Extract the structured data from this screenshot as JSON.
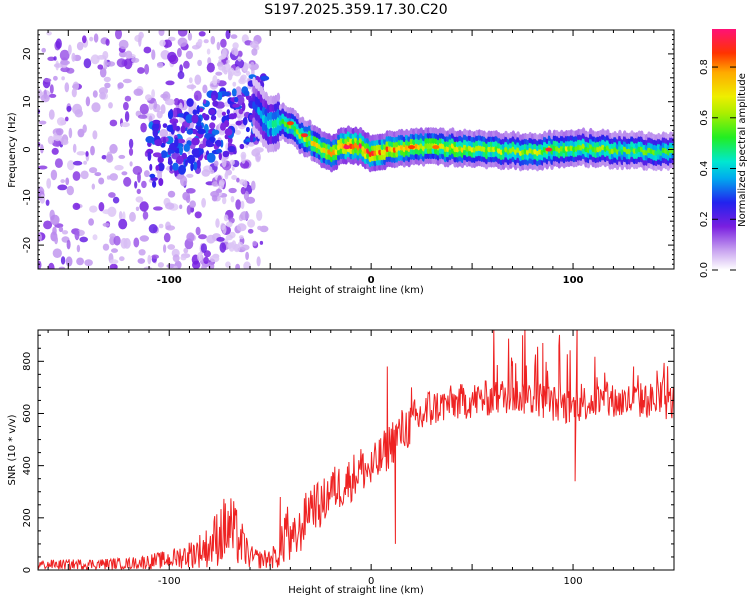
{
  "title": "S197.2025.359.17.30.C20",
  "chart_data": [
    {
      "type": "heatmap",
      "title": "S197.2025.359.17.30.C20",
      "xlabel": "Height of straight line (km)",
      "ylabel": "Frequency (Hz)",
      "xlim": [
        -165,
        150
      ],
      "ylim": [
        -25,
        25
      ],
      "x_ticks": [
        -100,
        0,
        100
      ],
      "x_tick_labels": [
        "-100",
        "0",
        "100"
      ],
      "y_ticks": [
        -20,
        -10,
        0,
        10,
        20
      ],
      "y_tick_labels": [
        "-20",
        "-10",
        "0",
        "10",
        "20"
      ],
      "colorbar": {
        "label": "Normalized spectral amplitude",
        "range": [
          0.0,
          0.95
        ],
        "ticks": [
          0.0,
          0.2,
          0.4,
          0.6,
          0.8
        ],
        "tick_labels": [
          "0.0",
          "0.2",
          "0.4",
          "0.6",
          "0.8"
        ]
      },
      "ridge": {
        "x": [
          -60,
          -50,
          -45,
          -40,
          -35,
          -30,
          -25,
          -20,
          -15,
          -10,
          -5,
          0,
          10,
          20,
          40,
          60,
          80,
          100,
          120,
          150
        ],
        "freq": [
          10,
          5,
          6,
          5,
          3,
          2,
          0.5,
          -1,
          0.5,
          1,
          0.5,
          -1,
          0,
          0.5,
          0.5,
          0,
          -0.5,
          0.5,
          0,
          -0.5
        ],
        "amplitude": [
          0.25,
          0.45,
          0.5,
          0.55,
          0.6,
          0.65,
          0.7,
          0.75,
          0.8,
          0.85,
          0.85,
          0.8,
          0.75,
          0.7,
          0.65,
          0.6,
          0.6,
          0.6,
          0.55,
          0.5
        ]
      }
    },
    {
      "type": "line",
      "xlabel": "Height of straight line (km)",
      "ylabel": "SNR (10 * v/v)",
      "xlim": [
        -165,
        150
      ],
      "ylim": [
        0,
        920
      ],
      "x_ticks": [
        -100,
        0,
        100
      ],
      "x_tick_labels": [
        "-100",
        "0",
        "100"
      ],
      "y_ticks": [
        0,
        200,
        400,
        600,
        800
      ],
      "y_tick_labels": [
        "0",
        "200",
        "400",
        "600",
        "800"
      ],
      "series": [
        {
          "name": "SNR",
          "color": "#ee2222",
          "x": [
            -165,
            -120,
            -100,
            -90,
            -80,
            -75,
            -70,
            -65,
            -60,
            -55,
            -50,
            -45,
            -42,
            -40,
            -35,
            -30,
            -25,
            -20,
            -15,
            -10,
            -5,
            0,
            5,
            10,
            15,
            20,
            25,
            30,
            40,
            50,
            60,
            70,
            80,
            85,
            90,
            95,
            100,
            105,
            110,
            120,
            130,
            140,
            150
          ],
          "values": [
            20,
            25,
            40,
            60,
            90,
            140,
            160,
            110,
            50,
            40,
            45,
            60,
            180,
            90,
            150,
            260,
            240,
            310,
            320,
            350,
            390,
            380,
            430,
            490,
            530,
            560,
            590,
            620,
            640,
            650,
            660,
            670,
            660,
            650,
            640,
            630,
            620,
            640,
            650,
            640,
            650,
            650,
            640
          ],
          "spikes": [
            {
              "x": -45,
              "value": 280
            },
            {
              "x": 8,
              "value": 780
            },
            {
              "x": 12,
              "value": 100
            },
            {
              "x": 20,
              "value": 700
            },
            {
              "x": 70,
              "value": 800
            },
            {
              "x": 75,
              "value": 900
            },
            {
              "x": 85,
              "value": 870
            },
            {
              "x": 93,
              "value": 860
            },
            {
              "x": 102,
              "value": 950
            },
            {
              "x": 101,
              "value": 340
            },
            {
              "x": 130,
              "value": 780
            }
          ]
        }
      ]
    }
  ]
}
